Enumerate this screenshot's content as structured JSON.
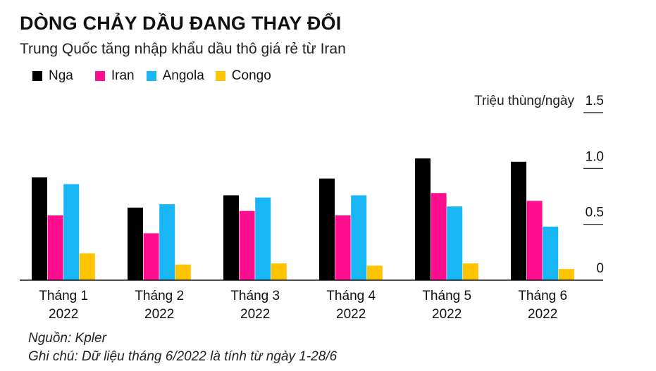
{
  "title": "DÒNG CHẢY DẦU ĐANG THAY ĐỔI",
  "subtitle": "Trung Quốc tăng nhập khẩu dầu thô giá rẻ từ Iran",
  "source": "Nguồn: Kpler",
  "note": "Ghi chú: Dữ liệu tháng 6/2022 là tính từ ngày 1-28/6",
  "chart_data": {
    "type": "bar",
    "title": "DÒNG CHẢY DẦU ĐANG THAY ĐỔI",
    "subtitle": "Trung Quốc tăng nhập khẩu dầu thô giá rẻ từ Iran",
    "ylabel": "Triệu thùng/ngày",
    "xlabel": "",
    "ylim": [
      0,
      1.5
    ],
    "yticks": [
      0,
      0.5,
      1.0,
      1.5
    ],
    "ytick_labels": [
      "0",
      "0.5",
      "1.0",
      "1.5"
    ],
    "y_axis_position": "right",
    "grid": "horizontal tick marks at right",
    "legend_position": "top-left",
    "categories": [
      [
        "Tháng 1",
        "2022"
      ],
      [
        "Tháng 2",
        "2022"
      ],
      [
        "Tháng 3",
        "2022"
      ],
      [
        "Tháng 4",
        "2022"
      ],
      [
        "Tháng 5",
        "2022"
      ],
      [
        "Tháng 6",
        "2022"
      ]
    ],
    "series": [
      {
        "name": "Nga",
        "color": "#000000",
        "values": [
          0.92,
          0.65,
          0.76,
          0.91,
          1.09,
          1.06
        ]
      },
      {
        "name": "Iran",
        "color": "#ff0f8f",
        "values": [
          0.58,
          0.42,
          0.62,
          0.58,
          0.78,
          0.71
        ]
      },
      {
        "name": "Angola",
        "color": "#18b6f5",
        "values": [
          0.86,
          0.68,
          0.74,
          0.76,
          0.66,
          0.48
        ]
      },
      {
        "name": "Congo",
        "color": "#ffc400",
        "values": [
          0.24,
          0.14,
          0.15,
          0.13,
          0.15,
          0.1
        ]
      }
    ]
  }
}
